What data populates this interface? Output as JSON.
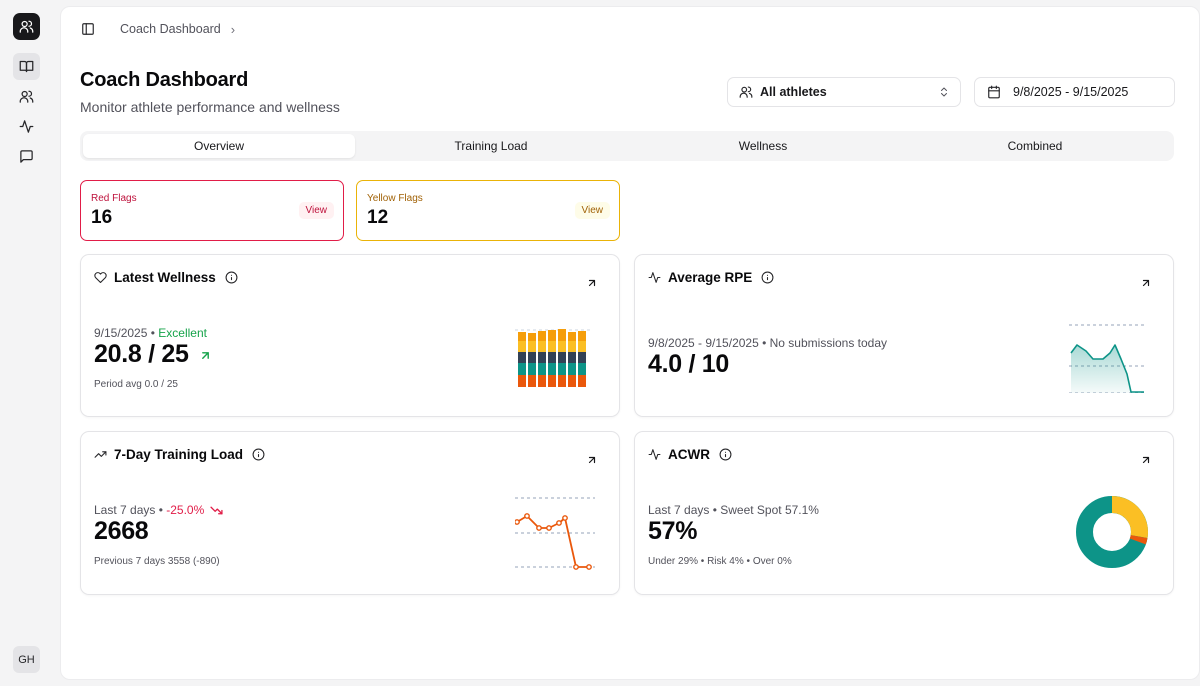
{
  "sidebar": {
    "logo_icon": "users-icon",
    "items": [
      {
        "icon": "book-icon",
        "active": true
      },
      {
        "icon": "users-icon",
        "active": false
      },
      {
        "icon": "activity-icon",
        "active": false
      },
      {
        "icon": "message-icon",
        "active": false
      }
    ],
    "user_initials": "GH"
  },
  "breadcrumb": {
    "item": "Coach Dashboard",
    "separator": "›"
  },
  "header": {
    "title": "Coach Dashboard",
    "subtitle": "Monitor athlete performance and wellness"
  },
  "filters": {
    "athletes": "All athletes",
    "date_range": "9/8/2025 - 9/15/2025"
  },
  "tabs": [
    {
      "label": "Overview",
      "active": true
    },
    {
      "label": "Training Load",
      "active": false
    },
    {
      "label": "Wellness",
      "active": false
    },
    {
      "label": "Combined",
      "active": false
    }
  ],
  "flags": {
    "red": {
      "label": "Red Flags",
      "count": "16",
      "action": "View"
    },
    "yellow": {
      "label": "Yellow Flags",
      "count": "12",
      "action": "View"
    }
  },
  "cards": {
    "wellness": {
      "title": "Latest Wellness",
      "date": "9/15/2025",
      "sep": " • ",
      "status": "Excellent",
      "value": "20.8 / 25",
      "footer": "Period avg 0.0 / 25"
    },
    "rpe": {
      "title": "Average RPE",
      "meta": "9/8/2025 - 9/15/2025 • No submissions today",
      "value": "4.0 / 10"
    },
    "training_load": {
      "title": "7-Day Training Load",
      "meta_prefix": "Last 7 days • ",
      "change": "-25.0%",
      "value": "2668",
      "footer": "Previous 7 days 3558 (-890)"
    },
    "acwr": {
      "title": "ACWR",
      "meta": "Last 7 days • Sweet Spot 57.1%",
      "value": "57%",
      "footer": "Under 29% • Risk 4% • Over 0%"
    }
  },
  "colors": {
    "accent_green": "#16a34a",
    "accent_red": "#e11d48",
    "teal": "#0d9488",
    "amber": "#fbbf24",
    "orange": "#ea580c"
  }
}
